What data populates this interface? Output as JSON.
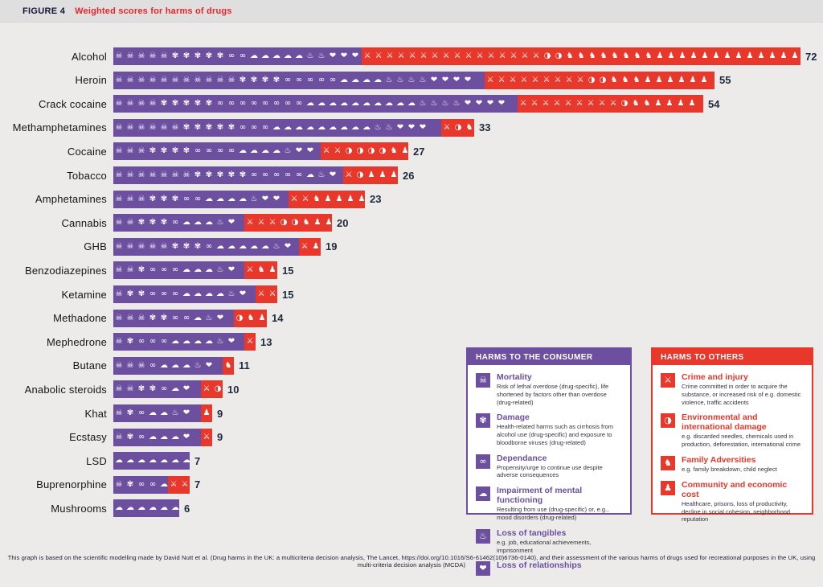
{
  "title": {
    "figure_label": "FIGURE 4",
    "text": "Weighted scores for harms of drugs"
  },
  "colors": {
    "consumer_purple": "#6c4f9f",
    "others_red": "#e8382b",
    "title_red": "#e8252b",
    "figure_label_navy": "#15153a",
    "score_dark": "#1d2b3c",
    "legend_bg": "#ffffff"
  },
  "icons": {
    "mortality": {
      "glyph": "☠",
      "name": "skull-icon"
    },
    "damage": {
      "glyph": "✾",
      "name": "damage-icon"
    },
    "dependence": {
      "glyph": "∞",
      "name": "chain-link-icon"
    },
    "mental": {
      "glyph": "☁",
      "name": "brain-icon"
    },
    "tangibles": {
      "glyph": "♨",
      "name": "flame-icon"
    },
    "relationships": {
      "glyph": "❤",
      "name": "broken-heart-icon"
    },
    "crime": {
      "glyph": "⚔",
      "name": "gun-icon"
    },
    "environment": {
      "glyph": "◑",
      "name": "globe-icon"
    },
    "family": {
      "glyph": "♞",
      "name": "family-icon"
    },
    "community": {
      "glyph": "♟",
      "name": "people-group-icon"
    }
  },
  "drugs": [
    {
      "name": "Alcohol",
      "total": 72,
      "self": 26,
      "others": 46,
      "self_icons": {
        "mortality": 5,
        "damage": 5,
        "dependence": 2,
        "mental": 5,
        "tangibles": 2,
        "relationships": 3
      },
      "others_icons": {
        "crime": 16,
        "environment": 2,
        "family": 8,
        "community": 13
      }
    },
    {
      "name": "Heroin",
      "total": 55,
      "self": 34,
      "others": 21,
      "self_icons": {
        "mortality": 11,
        "damage": 4,
        "dependence": 5,
        "mental": 4,
        "tangibles": 4,
        "relationships": 4
      },
      "others_icons": {
        "crime": 9,
        "environment": 2,
        "family": 3,
        "community": 6
      }
    },
    {
      "name": "Crack cocaine",
      "total": 54,
      "self": 37,
      "others": 17,
      "self_icons": {
        "mortality": 4,
        "damage": 5,
        "dependence": 8,
        "mental": 10,
        "tangibles": 4,
        "relationships": 4
      },
      "others_icons": {
        "crime": 9,
        "environment": 1,
        "family": 2,
        "community": 4
      }
    },
    {
      "name": "Methamphetamines",
      "total": 33,
      "self": 30,
      "others": 3,
      "self_icons": {
        "mortality": 6,
        "damage": 5,
        "dependence": 3,
        "mental": 9,
        "tangibles": 2,
        "relationships": 3
      },
      "others_icons": {
        "crime": 1,
        "environment": 1,
        "family": 1
      }
    },
    {
      "name": "Cocaine",
      "total": 27,
      "self": 19,
      "others": 8,
      "self_icons": {
        "mortality": 3,
        "damage": 4,
        "dependence": 4,
        "mental": 4,
        "tangibles": 1,
        "relationships": 2
      },
      "others_icons": {
        "crime": 2,
        "environment": 4,
        "family": 1,
        "community": 1
      }
    },
    {
      "name": "Tobacco",
      "total": 26,
      "self": 21,
      "others": 5,
      "self_icons": {
        "mortality": 7,
        "damage": 5,
        "dependence": 5,
        "mental": 1,
        "tangibles": 1,
        "relationships": 1
      },
      "others_icons": {
        "crime": 1,
        "environment": 1,
        "community": 3
      }
    },
    {
      "name": "Amphetamines",
      "total": 23,
      "self": 16,
      "others": 7,
      "self_icons": {
        "mortality": 3,
        "damage": 3,
        "dependence": 2,
        "mental": 4,
        "tangibles": 1,
        "relationships": 2
      },
      "others_icons": {
        "crime": 2,
        "family": 1,
        "community": 4
      }
    },
    {
      "name": "Cannabis",
      "total": 20,
      "self": 12,
      "others": 8,
      "self_icons": {
        "mortality": 2,
        "damage": 3,
        "dependence": 1,
        "mental": 3,
        "tangibles": 1,
        "relationships": 1
      },
      "others_icons": {
        "crime": 3,
        "environment": 2,
        "family": 1,
        "community": 2
      }
    },
    {
      "name": "GHB",
      "total": 19,
      "self": 17,
      "others": 2,
      "self_icons": {
        "mortality": 5,
        "damage": 3,
        "dependence": 1,
        "mental": 5,
        "tangibles": 1,
        "relationships": 1
      },
      "others_icons": {
        "crime": 1,
        "community": 1
      }
    },
    {
      "name": "Benzodiazepines",
      "total": 15,
      "self": 12,
      "others": 3,
      "self_icons": {
        "mortality": 2,
        "damage": 1,
        "dependence": 3,
        "mental": 3,
        "tangibles": 1,
        "relationships": 1
      },
      "others_icons": {
        "crime": 1,
        "family": 1,
        "community": 1
      }
    },
    {
      "name": "Ketamine",
      "total": 15,
      "self": 13,
      "others": 2,
      "self_icons": {
        "mortality": 1,
        "damage": 2,
        "dependence": 3,
        "mental": 4,
        "tangibles": 1,
        "relationships": 1
      },
      "others_icons": {
        "crime": 2
      }
    },
    {
      "name": "Methadone",
      "total": 14,
      "self": 11,
      "others": 3,
      "self_icons": {
        "mortality": 3,
        "damage": 2,
        "dependence": 2,
        "mental": 1,
        "tangibles": 1,
        "relationships": 1
      },
      "others_icons": {
        "environment": 1,
        "family": 1,
        "community": 1
      }
    },
    {
      "name": "Mephedrone",
      "total": 13,
      "self": 12,
      "others": 1,
      "self_icons": {
        "mortality": 1,
        "damage": 1,
        "dependence": 3,
        "mental": 4,
        "tangibles": 1,
        "relationships": 1
      },
      "others_icons": {
        "crime": 1
      }
    },
    {
      "name": "Butane",
      "total": 11,
      "self": 10,
      "others": 1,
      "self_icons": {
        "mortality": 3,
        "dependence": 1,
        "mental": 3,
        "tangibles": 1,
        "relationships": 1
      },
      "others_icons": {
        "family": 1
      }
    },
    {
      "name": "Anabolic steroids",
      "total": 10,
      "self": 8,
      "others": 2,
      "self_icons": {
        "mortality": 2,
        "damage": 2,
        "dependence": 1,
        "mental": 1,
        "relationships": 1
      },
      "others_icons": {
        "crime": 1,
        "environment": 1
      }
    },
    {
      "name": "Khat",
      "total": 9,
      "self": 8,
      "others": 1,
      "self_icons": {
        "mortality": 1,
        "damage": 1,
        "dependence": 1,
        "mental": 2,
        "tangibles": 1,
        "relationships": 1
      },
      "others_icons": {
        "community": 1
      }
    },
    {
      "name": "Ecstasy",
      "total": 9,
      "self": 8,
      "others": 1,
      "self_icons": {
        "mortality": 1,
        "damage": 1,
        "dependence": 1,
        "mental": 3,
        "relationships": 1
      },
      "others_icons": {
        "crime": 1
      }
    },
    {
      "name": "LSD",
      "total": 7,
      "self": 7,
      "others": 0,
      "self_icons": {
        "mental": 7
      },
      "others_icons": {}
    },
    {
      "name": "Buprenorphine",
      "total": 7,
      "self": 5,
      "others": 2,
      "self_icons": {
        "mortality": 1,
        "damage": 1,
        "dependence": 2,
        "mental": 1
      },
      "others_icons": {
        "crime": 2
      }
    },
    {
      "name": "Mushrooms",
      "total": 6,
      "self": 6,
      "others": 0,
      "self_icons": {
        "mental": 6
      },
      "others_icons": {}
    }
  ],
  "legend_consumer": {
    "header": "HARMS TO THE CONSUMER",
    "items": [
      {
        "icon": "mortality",
        "title": "Mortality",
        "desc": "Risk of lethal overdose (drug-specific), life shortened by factors other than overdose (drug-related)"
      },
      {
        "icon": "damage",
        "title": "Damage",
        "desc": "Health-related harms such as cirrhosis from alcohol use (drug-specific) and exposure to bloodborne viruses (drug-related)"
      },
      {
        "icon": "dependence",
        "title": "Dependance",
        "desc": "Propensity/urge to continue use despite adverse consequences"
      },
      {
        "icon": "mental",
        "title": "Impairment of mental functioning",
        "desc": "Resulting from use (drug-specific) or, e.g., mood disorders (drug-related)"
      },
      {
        "icon": "tangibles",
        "title": "Loss of tangibles",
        "desc": "e.g. job, educational achievements, imprisonment"
      },
      {
        "icon": "relationships",
        "title": "Loss of relationships",
        "desc": ""
      }
    ]
  },
  "legend_others": {
    "header": "HARMS TO OTHERS",
    "items": [
      {
        "icon": "crime",
        "title": "Crime and injury",
        "desc": "Crime committed in order to acquire the substance, or increased risk of e.g. domestic violence, traffic accidents"
      },
      {
        "icon": "environment",
        "title": "Environmental and international damage",
        "desc": "e.g. discarded needles, chemicals used in production, deforestation, international crime"
      },
      {
        "icon": "family",
        "title": "Family Adversities",
        "desc": "e.g. family breakdown, child neglect"
      },
      {
        "icon": "community",
        "title": "Community and economic cost",
        "desc": "Healthcare, prisons, loss of productivity, decline in social cohesion, neighborhood reputation"
      }
    ]
  },
  "footer": "This graph is based on the scientific modelling made by David Nutt et al. (Drug harms in the UK: a multicriteria decision analysis, The Lancet, https://doi.org/10.1016/S6-61462(10)6736-0140), and their assessment of the various harms of drugs used for recreational purposes in the UK, using multi-criteria decision analysis (MCDA)",
  "chart_data": {
    "type": "bar",
    "orientation": "horizontal",
    "stacked": true,
    "title": "Weighted scores for harms of drugs",
    "categories": [
      "Alcohol",
      "Heroin",
      "Crack cocaine",
      "Methamphetamines",
      "Cocaine",
      "Tobacco",
      "Amphetamines",
      "Cannabis",
      "GHB",
      "Benzodiazepines",
      "Ketamine",
      "Methadone",
      "Mephedrone",
      "Butane",
      "Anabolic steroids",
      "Khat",
      "Ecstasy",
      "LSD",
      "Buprenorphine",
      "Mushrooms"
    ],
    "series": [
      {
        "name": "Harms to the consumer",
        "color": "#6c4f9f",
        "values": [
          26,
          34,
          37,
          30,
          19,
          21,
          16,
          12,
          17,
          12,
          13,
          11,
          12,
          10,
          8,
          8,
          8,
          7,
          5,
          6
        ]
      },
      {
        "name": "Harms to others",
        "color": "#e8382b",
        "values": [
          46,
          21,
          17,
          3,
          8,
          5,
          7,
          8,
          2,
          3,
          2,
          3,
          1,
          1,
          2,
          1,
          1,
          0,
          2,
          0
        ]
      }
    ],
    "totals": [
      72,
      55,
      54,
      33,
      27,
      26,
      23,
      20,
      19,
      15,
      15,
      14,
      13,
      11,
      10,
      9,
      9,
      7,
      7,
      6
    ],
    "value_labels": "totals shown at end of each bar",
    "legend_position": "bottom-right, two boxed legends",
    "grid": false
  }
}
